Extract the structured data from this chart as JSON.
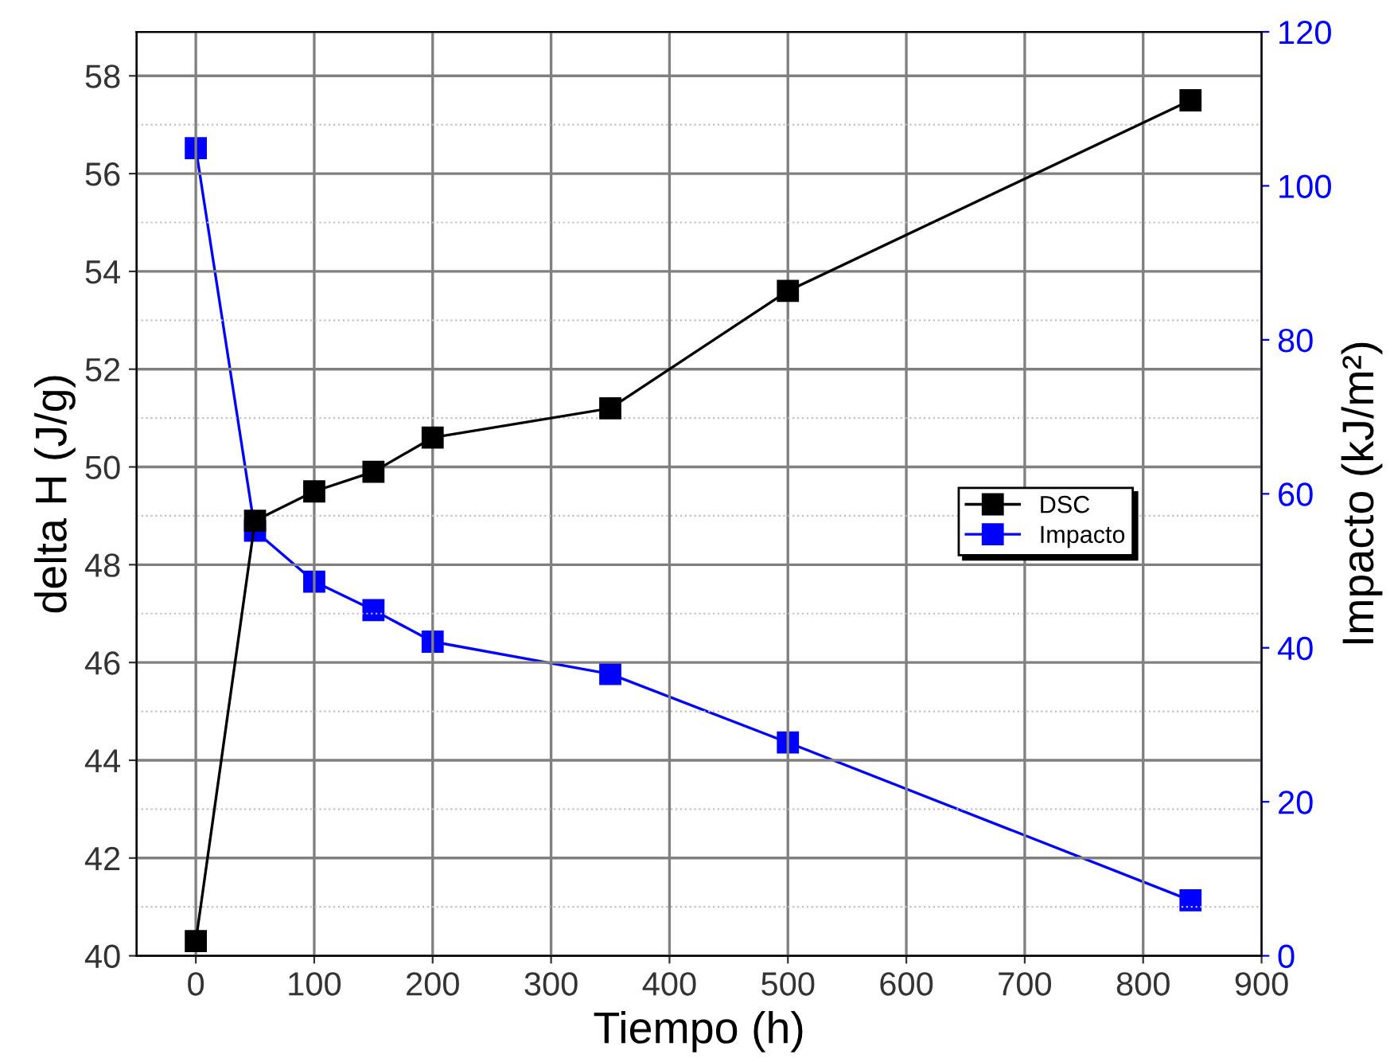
{
  "chart_data": {
    "type": "line",
    "xlabel": "Tiempo (h)",
    "ylabel": "delta H (J/g)",
    "y2label": "Impacto (kJ/m²)",
    "xlim": [
      -50,
      900
    ],
    "xticks": [
      0,
      100,
      200,
      300,
      400,
      500,
      600,
      700,
      800,
      900
    ],
    "ylim": [
      40,
      58.9
    ],
    "yticks": [
      40,
      42,
      44,
      46,
      48,
      50,
      52,
      54,
      56,
      58
    ],
    "y2lim": [
      0,
      120
    ],
    "y2ticks": [
      0,
      20,
      40,
      60,
      80,
      100,
      120
    ],
    "grid": true,
    "legend": "right",
    "marker": "square",
    "line_style": "solid",
    "series": [
      {
        "name": "DSC",
        "color": "#000000",
        "x": [
          0,
          50,
          100,
          150,
          200,
          350,
          500,
          840
        ],
        "values": [
          40.3,
          48.9,
          49.5,
          49.9,
          50.6,
          51.2,
          53.6,
          57.5
        ]
      },
      {
        "name": "Impacto",
        "color": "#0000ff",
        "axis": "y2",
        "x": [
          0,
          50,
          100,
          150,
          200,
          350,
          500,
          840
        ],
        "values": [
          104.9,
          55.2,
          48.6,
          44.9,
          40.8,
          36.6,
          27.7,
          7.2
        ]
      }
    ]
  }
}
